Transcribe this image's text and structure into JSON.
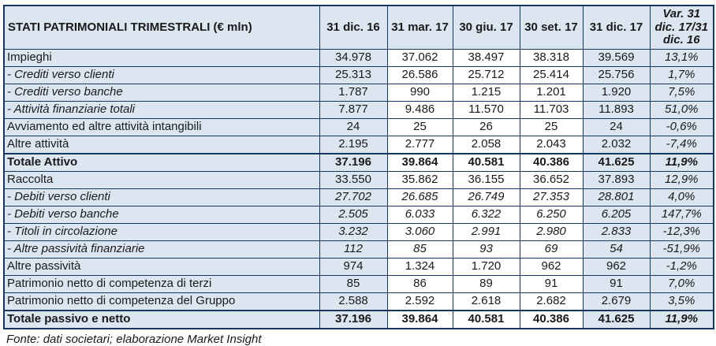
{
  "colors": {
    "highlight": "#dce6f1",
    "border": "#17375e",
    "text": "#1a1a1a"
  },
  "chart_data": {
    "type": "table",
    "title": "STATI PATRIMONIALI TRIMESTRALI (€ mln)",
    "columns": [
      "31 dic. 16",
      "31 mar. 17",
      "30 giu. 17",
      "30 set. 17",
      "31 dic. 17",
      "Var. 31 dic. 17/31 dic. 16"
    ],
    "highlighted_columns": [
      "31 dic. 16",
      "31 dic. 17",
      "Var. 31 dic. 17/31 dic. 16"
    ],
    "rows": [
      {
        "label": "Impieghi",
        "style": "normal",
        "values": [
          "34.978",
          "37.062",
          "38.497",
          "38.318",
          "39.569"
        ],
        "var": "13,1%"
      },
      {
        "label": "- Crediti verso clienti",
        "style": "sub",
        "values": [
          "25.313",
          "26.586",
          "25.712",
          "25.414",
          "25.756"
        ],
        "var": "1,7%"
      },
      {
        "label": "- Crediti verso banche",
        "style": "sub",
        "values": [
          "1.787",
          "990",
          "1.215",
          "1.201",
          "1.920"
        ],
        "var": "7,5%"
      },
      {
        "label": "- Attività finanziarie totali",
        "style": "sub",
        "values": [
          "7.877",
          "9.486",
          "11.570",
          "11.703",
          "11.893"
        ],
        "var": "51,0%"
      },
      {
        "label": "Avviamento ed altre attività intangibili",
        "style": "normal",
        "values": [
          "24",
          "25",
          "26",
          "25",
          "24"
        ],
        "var": "-0,6%"
      },
      {
        "label": "Altre attività",
        "style": "normal",
        "values": [
          "2.195",
          "2.777",
          "2.058",
          "2.043",
          "2.032"
        ],
        "var": "-7,4%"
      },
      {
        "label": "Totale Attivo",
        "style": "total",
        "values": [
          "37.196",
          "39.864",
          "40.581",
          "40.386",
          "41.625"
        ],
        "var": "11,9%"
      },
      {
        "label": "Raccolta",
        "style": "normal",
        "values": [
          "33.550",
          "35.862",
          "36.155",
          "36.652",
          "37.893"
        ],
        "var": "12,9%"
      },
      {
        "label": "- Debiti verso clienti",
        "style": "subitalic",
        "values": [
          "27.702",
          "26.685",
          "26.749",
          "27.353",
          "28.801"
        ],
        "var": "4,0%"
      },
      {
        "label": "- Debiti verso banche",
        "style": "subitalic",
        "values": [
          "2.505",
          "6.033",
          "6.322",
          "6.250",
          "6.205"
        ],
        "var": "147,7%"
      },
      {
        "label": "- Titoli in circolazione",
        "style": "subitalic",
        "values": [
          "3.232",
          "3.060",
          "2.991",
          "2.980",
          "2.833"
        ],
        "var": "-12,3%"
      },
      {
        "label": "- Altre passività finanziarie",
        "style": "subitalic",
        "values": [
          "112",
          "85",
          "93",
          "69",
          "54"
        ],
        "var": "-51,9%"
      },
      {
        "label": "Altre passività",
        "style": "normal",
        "values": [
          "974",
          "1.324",
          "1.720",
          "962",
          "962"
        ],
        "var": "-1,2%"
      },
      {
        "label": "Patrimonio netto di competenza di terzi",
        "style": "normal",
        "values": [
          "85",
          "86",
          "89",
          "91",
          "91"
        ],
        "var": "7,0%"
      },
      {
        "label": "Patrimonio netto di competenza del Gruppo",
        "style": "normal",
        "values": [
          "2.588",
          "2.592",
          "2.618",
          "2.682",
          "2.679"
        ],
        "var": "3,5%"
      },
      {
        "label": "Totale passivo e netto",
        "style": "total",
        "values": [
          "37.196",
          "39.864",
          "40.581",
          "40.386",
          "41.625"
        ],
        "var": "11,9%"
      }
    ],
    "source_note": "Fonte: dati societari; elaborazione Market Insight"
  }
}
